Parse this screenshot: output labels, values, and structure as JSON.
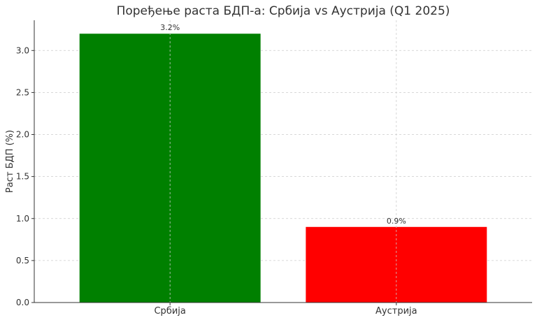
{
  "chart_data": {
    "type": "bar",
    "title": "Поређење раста БДП-а: Србија vs Аустрија (Q1 2025)",
    "xlabel": "",
    "ylabel": "Раст БДП (%)",
    "categories": [
      "Србија",
      "Аустрија"
    ],
    "values": [
      3.2,
      0.9
    ],
    "data_labels": [
      "3.2%",
      "0.9%"
    ],
    "colors": [
      "#008000",
      "#ff0000"
    ],
    "ylim": [
      0,
      3.36
    ],
    "yticks": [
      0.0,
      0.5,
      1.0,
      1.5,
      2.0,
      2.5,
      3.0
    ],
    "ytick_labels": [
      "0.0",
      "0.5",
      "1.0",
      "1.5",
      "2.0",
      "2.5",
      "3.0"
    ],
    "grid": true
  }
}
